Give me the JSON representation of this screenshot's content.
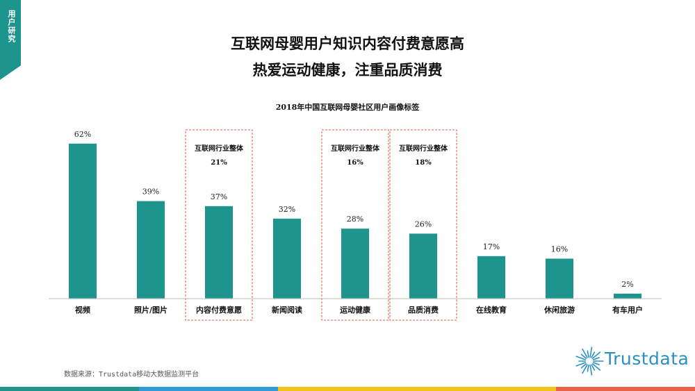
{
  "side_tab": "用户研究",
  "title_line1": "互联网母婴用户知识内容付费意愿高",
  "title_line2": "热爱运动健康，注重品质消费",
  "source_note": "数据来源：Trustdata移动大数据监测平台",
  "logo_text": "Trustdata",
  "colors": {
    "bar": "#1e948f",
    "tab": "#1e948f",
    "highlight_border": "#e05a4f",
    "logo": "#2a8fc7",
    "footer": [
      "#1e948f",
      "#2e9bd6",
      "#f2c418",
      "#e8624a"
    ]
  },
  "chart_data": {
    "type": "bar",
    "title": "2018年中国互联网母婴社区用户画像标签",
    "categories": [
      "视频",
      "照片/图片",
      "内容付费意愿",
      "新闻阅读",
      "运动健康",
      "品质消费",
      "在线教育",
      "休闲旅游",
      "有车用户"
    ],
    "values": [
      62,
      39,
      37,
      32,
      28,
      26,
      17,
      16,
      2
    ],
    "value_labels": [
      "62%",
      "39%",
      "37%",
      "32%",
      "28%",
      "26%",
      "17%",
      "16%",
      "2%"
    ],
    "ylim": [
      0,
      65
    ],
    "grid": false,
    "highlights": [
      {
        "category_index": 2,
        "label": "互联网行业整体",
        "value_label": "21%"
      },
      {
        "category_index": 4,
        "label": "互联网行业整体",
        "value_label": "16%"
      },
      {
        "category_index": 5,
        "label": "互联网行业整体",
        "value_label": "18%"
      }
    ]
  }
}
